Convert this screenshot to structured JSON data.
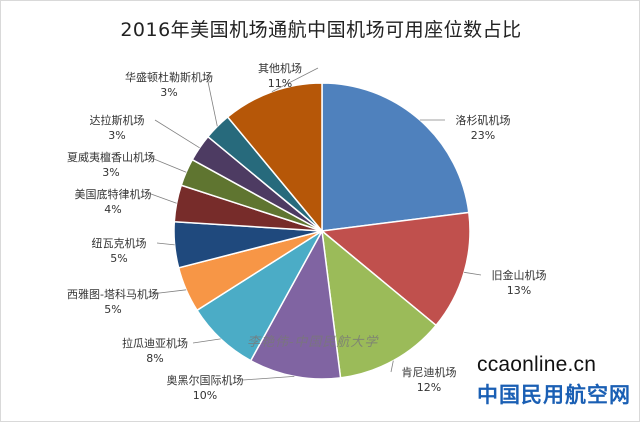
{
  "chart_data": {
    "type": "pie",
    "title": "2016年美国机场通航中国机场可用座位数占比",
    "slices": [
      {
        "label": "洛杉矶机场",
        "value": 23,
        "pct_label": "23%",
        "color": "#4F81BD"
      },
      {
        "label": "旧金山机场",
        "value": 13,
        "pct_label": "13%",
        "color": "#C0504D"
      },
      {
        "label": "肯尼迪机场",
        "value": 12,
        "pct_label": "12%",
        "color": "#9BBB59"
      },
      {
        "label": "奥黑尔国际机场",
        "value": 10,
        "pct_label": "10%",
        "color": "#8064A2"
      },
      {
        "label": "拉瓜迪亚机场",
        "value": 8,
        "pct_label": "8%",
        "color": "#4BACC6"
      },
      {
        "label": "西雅图-塔科马机场",
        "value": 5,
        "pct_label": "5%",
        "color": "#F79646"
      },
      {
        "label": "纽瓦克机场",
        "value": 5,
        "pct_label": "5%",
        "color": "#1F497D"
      },
      {
        "label": "美国底特律机场",
        "value": 4,
        "pct_label": "4%",
        "color": "#772C2A"
      },
      {
        "label": "夏威夷檀香山机场",
        "value": 3,
        "pct_label": "3%",
        "color": "#5F7530"
      },
      {
        "label": "达拉斯机场",
        "value": 3,
        "pct_label": "3%",
        "color": "#4D3B62"
      },
      {
        "label": "华盛顿杜勒斯机场",
        "value": 3,
        "pct_label": "3%",
        "color": "#276A7C"
      },
      {
        "label": "其他机场",
        "value": 11,
        "pct_label": "11%",
        "color": "#B65708"
      }
    ]
  },
  "watermark": {
    "author": "李艳伟-中国民航大学",
    "site_url": "ccaonline.cn",
    "site_name": "中国民用航空网"
  }
}
